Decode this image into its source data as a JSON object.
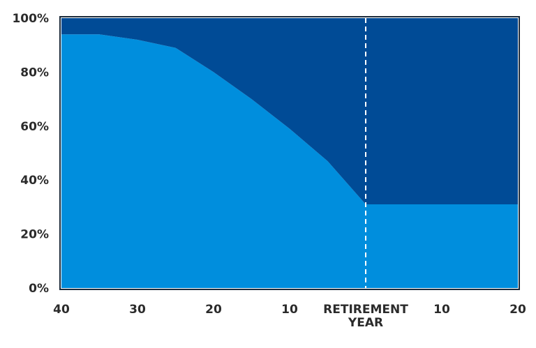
{
  "colors": {
    "dark_area": "#004B96",
    "light_area": "#008EDD",
    "frame": "#1c2a3a",
    "divider": "#ffffff"
  },
  "chart_data": {
    "type": "area",
    "stacked": true,
    "title": "",
    "xlabel": "",
    "ylabel": "",
    "ylim": [
      0,
      100
    ],
    "yticks": [
      "0%",
      "20%",
      "40%",
      "60%",
      "80%",
      "100%"
    ],
    "xticks": [
      "40",
      "30",
      "20",
      "10",
      "RETIREMENT YEAR",
      "10",
      "20"
    ],
    "x_years_before_after": [
      -40,
      -35,
      -30,
      -25,
      -20,
      -15,
      -10,
      -5,
      0,
      5,
      10,
      15,
      20
    ],
    "series": [
      {
        "values": [
          94,
          94,
          92,
          89,
          80,
          70,
          59,
          47,
          31,
          31,
          31,
          31,
          31
        ]
      },
      {
        "values": [
          6,
          6,
          8,
          11,
          20,
          30,
          41,
          53,
          69,
          69,
          69,
          69,
          69
        ]
      }
    ],
    "divider_at_x": 0,
    "grid": false,
    "legend": "none"
  }
}
